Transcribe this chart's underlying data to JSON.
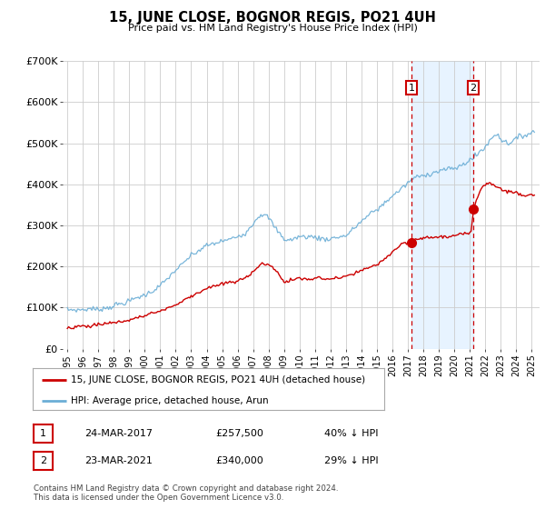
{
  "title": "15, JUNE CLOSE, BOGNOR REGIS, PO21 4UH",
  "subtitle": "Price paid vs. HM Land Registry's House Price Index (HPI)",
  "background_color": "#ffffff",
  "plot_bg_color": "#ffffff",
  "grid_color": "#cccccc",
  "ylim": [
    0,
    700000
  ],
  "yticks": [
    0,
    100000,
    200000,
    300000,
    400000,
    500000,
    600000,
    700000
  ],
  "ytick_labels": [
    "£0",
    "£100K",
    "£200K",
    "£300K",
    "£400K",
    "£500K",
    "£600K",
    "£700K"
  ],
  "xlim_start": 1994.7,
  "xlim_end": 2025.5,
  "xtick_years": [
    1995,
    1996,
    1997,
    1998,
    1999,
    2000,
    2001,
    2002,
    2003,
    2004,
    2005,
    2006,
    2007,
    2008,
    2009,
    2010,
    2011,
    2012,
    2013,
    2014,
    2015,
    2016,
    2017,
    2018,
    2019,
    2020,
    2021,
    2022,
    2023,
    2024,
    2025
  ],
  "hpi_color": "#6baed6",
  "price_color": "#cc0000",
  "vline_color": "#cc0000",
  "shade_color": "#ddeeff",
  "annotation_box_color": "#cc0000",
  "sale1_x": 2017.22,
  "sale1_y": 257500,
  "sale1_label": "1",
  "sale2_x": 2021.22,
  "sale2_y": 340000,
  "sale2_label": "2",
  "legend_line1": "15, JUNE CLOSE, BOGNOR REGIS, PO21 4UH (detached house)",
  "legend_line2": "HPI: Average price, detached house, Arun",
  "footer1": "Contains HM Land Registry data © Crown copyright and database right 2024.",
  "footer2": "This data is licensed under the Open Government Licence v3.0.",
  "table_row1_num": "1",
  "table_row1_date": "24-MAR-2017",
  "table_row1_price": "£257,500",
  "table_row1_hpi": "40% ↓ HPI",
  "table_row2_num": "2",
  "table_row2_date": "23-MAR-2021",
  "table_row2_price": "£340,000",
  "table_row2_hpi": "29% ↓ HPI"
}
